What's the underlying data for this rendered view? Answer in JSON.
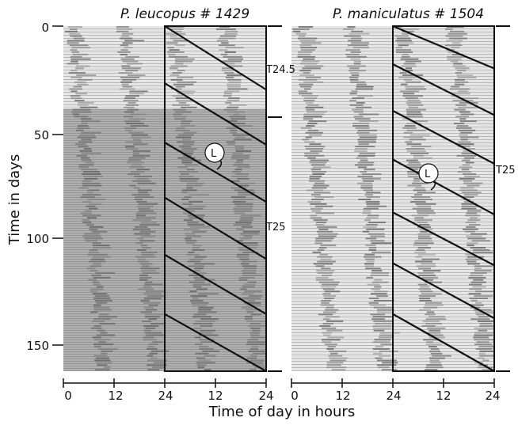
{
  "figure": {
    "panels": [
      {
        "id": "left",
        "title": "P. leucopus  # 1429"
      },
      {
        "id": "right",
        "title": "P. maniculatus # 1504"
      }
    ],
    "y_axis": {
      "label": "Time in days",
      "ticks": [
        "0",
        "50",
        "100",
        "150"
      ],
      "range": [
        0,
        163
      ]
    },
    "x_axis": {
      "label": "Time of day in hours",
      "ticks": [
        "0",
        "12",
        "24",
        "12",
        "24",
        "0",
        "12",
        "24",
        "12",
        "24"
      ]
    },
    "annotations": {
      "left_t1": "T24.5",
      "left_t2": "T25",
      "right_t": "T25",
      "light_marker": "L"
    },
    "colors": {
      "actogram_dark": "#5f5f5f",
      "actogram_light": "#cfcfcf",
      "rest_background": "#e9e9e9",
      "line": "#111111"
    }
  },
  "chart_data": {
    "type": "actogram",
    "x_unit": "hours",
    "y_unit": "days",
    "panels": [
      {
        "title": "P. leucopus  # 1429",
        "x_range": [
          0,
          48
        ],
        "y_range": [
          0,
          163
        ],
        "bracket_marks_days": [
          0,
          38,
          163
        ],
        "free_running_periods": [
          {
            "label": "T24.5",
            "day": 15
          },
          {
            "label": "T25",
            "day": 93
          }
        ],
        "light_pulse": {
          "label": "L",
          "day": 61
        },
        "onset_lines": [
          {
            "days": [
              0,
              30
            ]
          },
          {
            "days": [
              27,
              56
            ]
          },
          {
            "days": [
              55,
              83
            ]
          },
          {
            "days": [
              81,
              110
            ]
          },
          {
            "days": [
              108,
              136
            ]
          },
          {
            "days": [
              136,
              163
            ]
          }
        ]
      },
      {
        "title": "P. maniculatus # 1504",
        "x_range": [
          0,
          48
        ],
        "y_range": [
          0,
          163
        ],
        "bracket_marks_days": [
          0,
          163
        ],
        "free_running_periods": [
          {
            "label": "T25",
            "day": 70
          }
        ],
        "light_pulse": {
          "label": "L",
          "day": 70
        },
        "onset_lines": [
          {
            "days": [
              0,
              20
            ]
          },
          {
            "days": [
              18,
              42
            ]
          },
          {
            "days": [
              40,
              65
            ]
          },
          {
            "days": [
              63,
              89
            ]
          },
          {
            "days": [
              88,
              113
            ]
          },
          {
            "days": [
              112,
              138
            ]
          },
          {
            "days": [
              136,
              163
            ]
          }
        ]
      }
    ]
  }
}
